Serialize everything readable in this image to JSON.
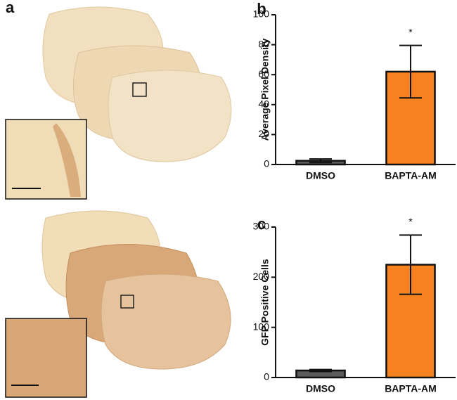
{
  "panel_a": {
    "label": "a"
  },
  "chart_data": [
    {
      "type": "bar",
      "panel_label": "b",
      "ylabel": "Average Pixel Density",
      "categories": [
        "DMSO",
        "BAPTA-AM"
      ],
      "series": [
        {
          "values": [
            2.5,
            62
          ],
          "errors": [
            1.2,
            17.5
          ],
          "colors": [
            "#5a5a5a",
            "#f5821f"
          ]
        }
      ],
      "significance": [
        null,
        "*"
      ],
      "ylim": [
        0,
        100
      ],
      "yticks": [
        0,
        20,
        40,
        60,
        80,
        100
      ]
    },
    {
      "type": "bar",
      "panel_label": "c",
      "ylabel": "GFP Positive Cells",
      "categories": [
        "DMSO",
        "BAPTA-AM"
      ],
      "series": [
        {
          "values": [
            14,
            225
          ],
          "errors": [
            2,
            59
          ],
          "colors": [
            "#5a5a5a",
            "#f5821f"
          ]
        }
      ],
      "significance": [
        null,
        "*"
      ],
      "ylim": [
        0,
        300
      ],
      "yticks": [
        0,
        100,
        200,
        300
      ]
    }
  ]
}
